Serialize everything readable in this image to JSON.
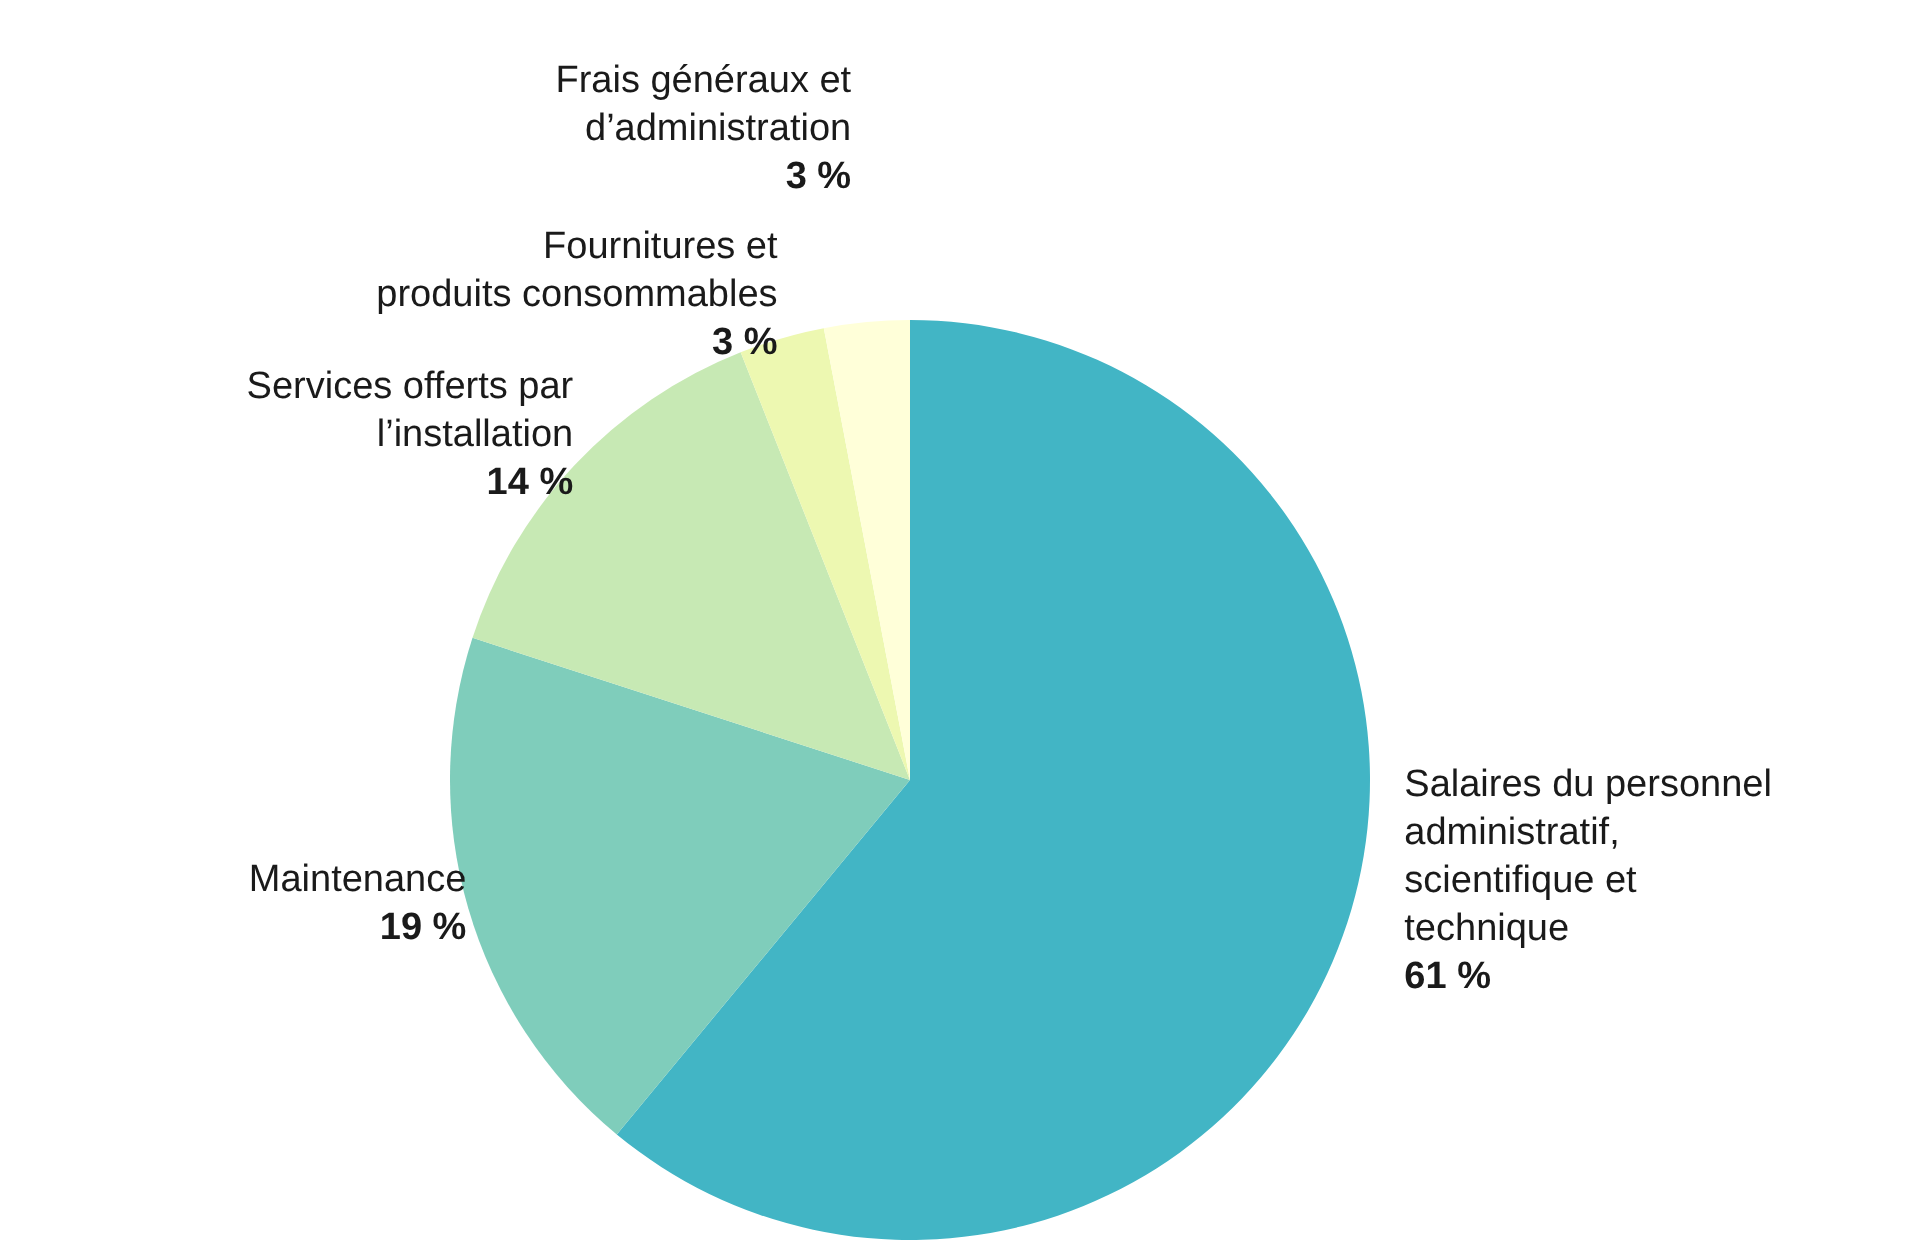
{
  "chart_data": {
    "type": "pie",
    "categories": [
      "Salaires du personnel administratif, scientifique et technique",
      "Maintenance",
      "Services offerts par l’installation",
      "Fournitures et produits consommables",
      "Frais généraux et d’administration"
    ],
    "values": [
      61,
      19,
      14,
      3,
      3
    ],
    "colors": [
      "#42b5c5",
      "#7fcdbb",
      "#c7e9b4",
      "#edf8b1",
      "#ffffd9"
    ],
    "value_labels": [
      "61 %",
      "19 %",
      "14 %",
      "3 %",
      "3 %"
    ]
  }
}
